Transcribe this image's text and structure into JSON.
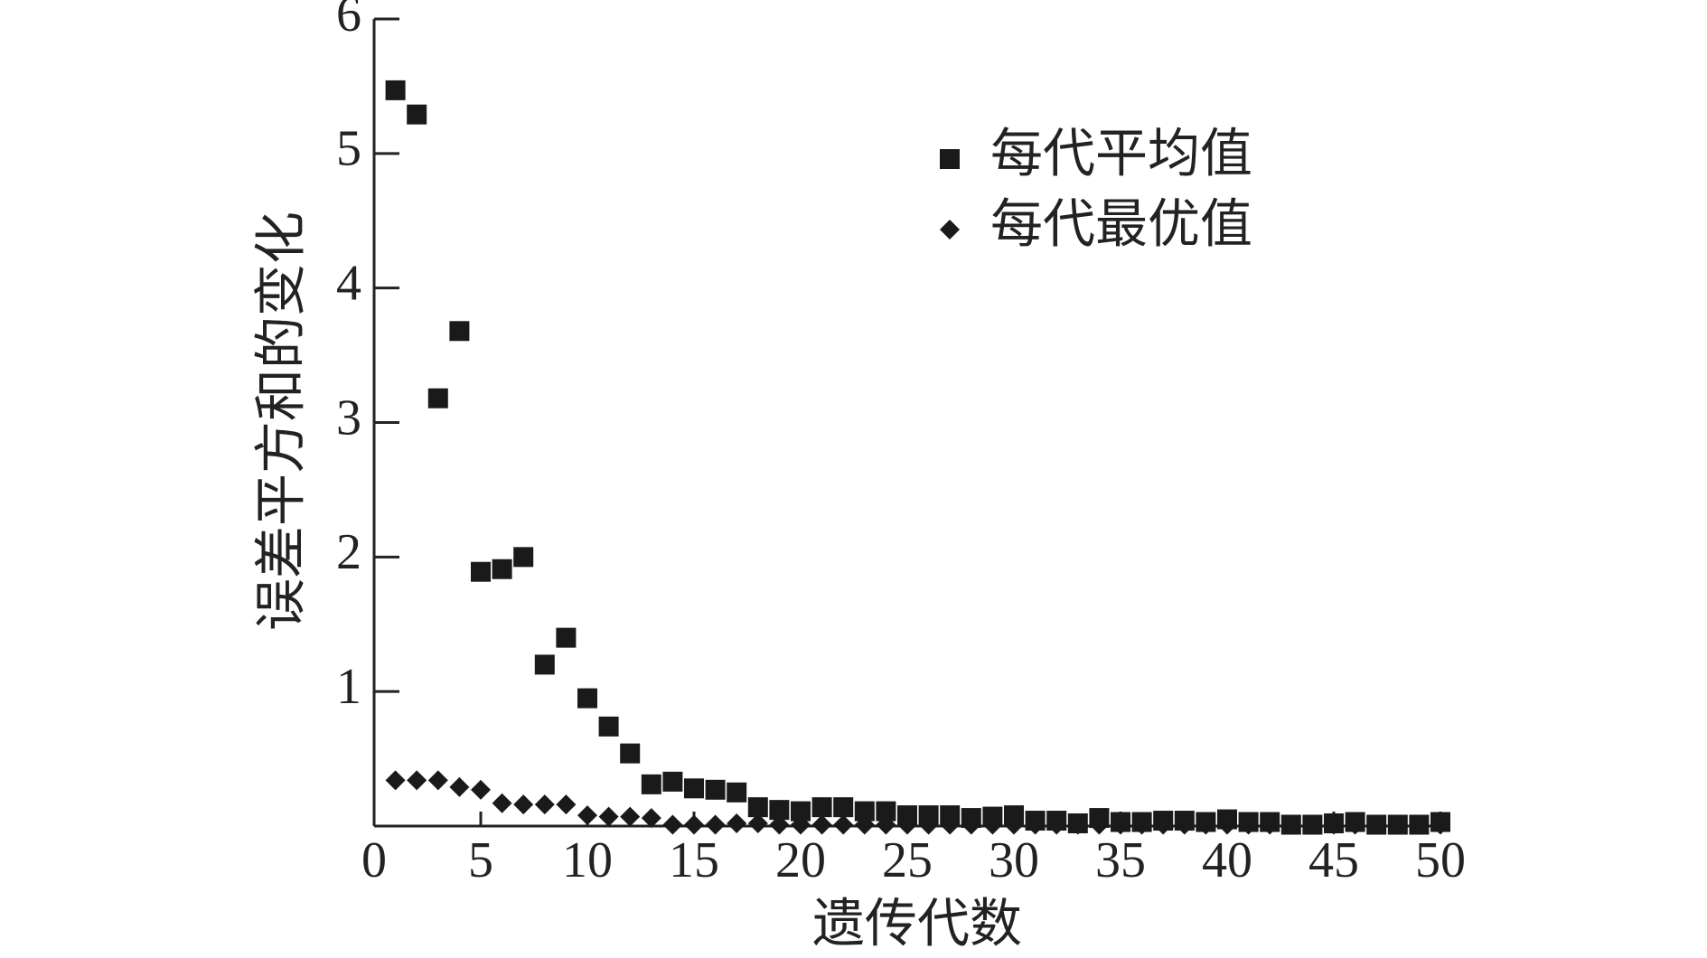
{
  "chart_data": {
    "type": "scatter",
    "x_label": "遗传代数",
    "y_label": "误差平方和的变化",
    "x": [
      1,
      2,
      3,
      4,
      5,
      6,
      7,
      8,
      9,
      10,
      11,
      12,
      13,
      14,
      15,
      16,
      17,
      18,
      19,
      20,
      21,
      22,
      23,
      24,
      25,
      26,
      27,
      28,
      29,
      30,
      31,
      32,
      33,
      34,
      35,
      36,
      37,
      38,
      39,
      40,
      41,
      42,
      43,
      44,
      45,
      46,
      47,
      48,
      49,
      50
    ],
    "series": [
      {
        "name": "每代平均值",
        "color": "#1a1a1a",
        "marker": "square",
        "values": [
          5.47,
          5.29,
          3.18,
          3.68,
          1.89,
          1.91,
          2.0,
          1.2,
          1.4,
          0.95,
          0.74,
          0.54,
          0.31,
          0.33,
          0.28,
          0.27,
          0.25,
          0.14,
          0.12,
          0.11,
          0.14,
          0.14,
          0.11,
          0.11,
          0.08,
          0.08,
          0.08,
          0.06,
          0.07,
          0.08,
          0.04,
          0.04,
          0.02,
          0.06,
          0.03,
          0.03,
          0.04,
          0.04,
          0.03,
          0.05,
          0.03,
          0.03,
          0.01,
          0.01,
          0.02,
          0.03,
          0.01,
          0.01,
          0.01,
          0.03
        ]
      },
      {
        "name": "每代最优值",
        "color": "#1a1a1a",
        "marker": "diamond",
        "values": [
          0.34,
          0.34,
          0.34,
          0.29,
          0.27,
          0.17,
          0.16,
          0.16,
          0.16,
          0.08,
          0.07,
          0.07,
          0.06,
          0.01,
          0.01,
          0.01,
          0.02,
          0.02,
          0.01,
          0.01,
          0.01,
          0.01,
          0.01,
          0.01,
          0.01,
          0.01,
          0.01,
          0.01,
          0.01,
          0.01,
          0.01,
          0.01,
          0.01,
          0.01,
          0.01,
          0.01,
          0.01,
          0.01,
          0.01,
          0.01,
          0.01,
          0.01,
          0.01,
          0.01,
          0.01,
          0.01,
          0.01,
          0.01,
          0.01,
          0.01
        ]
      }
    ],
    "xlim": [
      0,
      50
    ],
    "xticks": [
      0,
      5,
      10,
      15,
      20,
      25,
      30,
      35,
      40,
      45,
      50
    ],
    "ylim": [
      0,
      6
    ],
    "yticks": [
      1,
      2,
      3,
      4,
      5,
      6
    ],
    "legend": "upper right"
  }
}
